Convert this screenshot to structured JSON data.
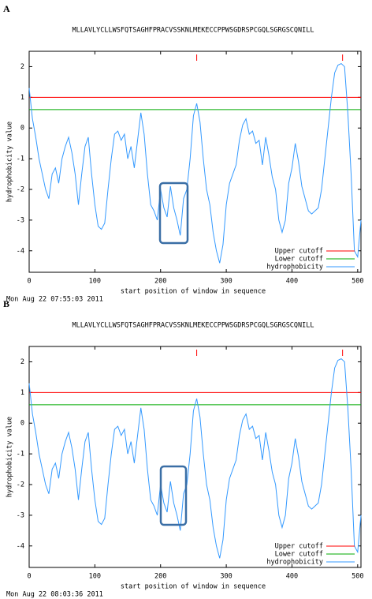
{
  "chart_data": [
    {
      "type": "line",
      "panel_label": "A",
      "title": "MLLAVLYCLLWSFQTSAGHFPRACVSSKNLMEKECCPPWSGDRSPCGQLSGRGSCQNILL",
      "xlabel": "start position of window in sequence",
      "ylabel": "hydrophobicity value",
      "footer": "Mon Aug 22 07:55:03 2011",
      "xlim": [
        0,
        505
      ],
      "ylim": [
        -4.7,
        2.5
      ],
      "xticks": [
        0,
        100,
        200,
        300,
        400,
        500
      ],
      "yticks": [
        2,
        1,
        0,
        -1,
        -2,
        -3,
        -4
      ],
      "peak_marks": {
        "color": "#ff0000",
        "x": [
          255,
          477
        ]
      },
      "cutoffs": [
        {
          "name": "Upper cutoff",
          "color": "#ff0000",
          "value": 1
        },
        {
          "name": "Lower cutoff",
          "color": "#00aa00",
          "value": 0.6
        }
      ],
      "x": [
        0,
        5,
        10,
        15,
        20,
        25,
        30,
        35,
        40,
        45,
        50,
        55,
        60,
        65,
        70,
        75,
        80,
        85,
        90,
        95,
        100,
        105,
        110,
        115,
        120,
        125,
        130,
        135,
        140,
        145,
        150,
        155,
        160,
        165,
        170,
        175,
        180,
        185,
        190,
        195,
        200,
        205,
        210,
        215,
        220,
        225,
        230,
        235,
        240,
        245,
        250,
        255,
        260,
        265,
        270,
        275,
        280,
        285,
        290,
        295,
        300,
        305,
        310,
        315,
        320,
        325,
        330,
        335,
        340,
        345,
        350,
        355,
        360,
        365,
        370,
        375,
        380,
        385,
        390,
        395,
        400,
        405,
        410,
        415,
        420,
        425,
        430,
        435,
        440,
        445,
        450,
        455,
        460,
        465,
        470,
        475,
        480,
        485,
        490,
        495,
        500,
        505
      ],
      "series": [
        {
          "name": "hydrophobicity",
          "color": "#3399ff",
          "values": [
            1.3,
            0.3,
            -0.3,
            -1.0,
            -1.5,
            -2.0,
            -2.3,
            -1.5,
            -1.3,
            -1.8,
            -1.0,
            -0.6,
            -0.3,
            -0.8,
            -1.5,
            -2.5,
            -1.5,
            -0.6,
            -0.3,
            -1.5,
            -2.5,
            -3.2,
            -3.3,
            -3.1,
            -2.0,
            -1.0,
            -0.2,
            -0.1,
            -0.4,
            -0.2,
            -1.0,
            -0.6,
            -1.3,
            -0.4,
            0.5,
            -0.2,
            -1.5,
            -2.5,
            -2.7,
            -3.0,
            -2.0,
            -2.6,
            -2.9,
            -1.9,
            -2.6,
            -3.0,
            -3.5,
            -2.3,
            -2.0,
            -1.0,
            0.4,
            0.8,
            0.2,
            -1.0,
            -2.0,
            -2.5,
            -3.4,
            -4.0,
            -4.4,
            -3.8,
            -2.5,
            -1.8,
            -1.5,
            -1.2,
            -0.4,
            0.1,
            0.3,
            -0.2,
            -0.1,
            -0.5,
            -0.4,
            -1.2,
            -0.3,
            -0.9,
            -1.6,
            -2.0,
            -3.0,
            -3.4,
            -3.0,
            -1.8,
            -1.3,
            -0.5,
            -1.1,
            -1.9,
            -2.3,
            -2.7,
            -2.8,
            -2.7,
            -2.6,
            -2.0,
            -1.0,
            0.0,
            1.0,
            1.8,
            2.05,
            2.1,
            2.0,
            0.5,
            -1.5,
            -4.0,
            -4.2,
            -3.0
          ]
        }
      ]
    },
    {
      "type": "line",
      "panel_label": "B",
      "title": "MLLAVLYCLLWSFQTSAGHFPRACVSSKNLMEKECCPPWSGDRSPCGQLSGRGSCQNILL",
      "xlabel": "start position of window in sequence",
      "ylabel": "hydrophobicity value",
      "footer": "Mon Aug 22 08:03:36 2011",
      "xlim": [
        0,
        505
      ],
      "ylim": [
        -4.7,
        2.5
      ],
      "xticks": [
        0,
        100,
        200,
        300,
        400,
        500
      ],
      "yticks": [
        2,
        1,
        0,
        -1,
        -2,
        -3,
        -4
      ],
      "peak_marks": {
        "color": "#ff0000",
        "x": [
          255,
          477
        ]
      },
      "cutoffs": [
        {
          "name": "Upper cutoff",
          "color": "#ff0000",
          "value": 1
        },
        {
          "name": "Lower cutoff",
          "color": "#00aa00",
          "value": 0.6
        }
      ],
      "x": [
        0,
        5,
        10,
        15,
        20,
        25,
        30,
        35,
        40,
        45,
        50,
        55,
        60,
        65,
        70,
        75,
        80,
        85,
        90,
        95,
        100,
        105,
        110,
        115,
        120,
        125,
        130,
        135,
        140,
        145,
        150,
        155,
        160,
        165,
        170,
        175,
        180,
        185,
        190,
        195,
        200,
        205,
        210,
        215,
        220,
        225,
        230,
        235,
        240,
        245,
        250,
        255,
        260,
        265,
        270,
        275,
        280,
        285,
        290,
        295,
        300,
        305,
        310,
        315,
        320,
        325,
        330,
        335,
        340,
        345,
        350,
        355,
        360,
        365,
        370,
        375,
        380,
        385,
        390,
        395,
        400,
        405,
        410,
        415,
        420,
        425,
        430,
        435,
        440,
        445,
        450,
        455,
        460,
        465,
        470,
        475,
        480,
        485,
        490,
        495,
        500,
        505
      ],
      "series": [
        {
          "name": "hydrophobicity",
          "color": "#3399ff",
          "values": [
            1.3,
            0.3,
            -0.3,
            -1.0,
            -1.5,
            -2.0,
            -2.3,
            -1.5,
            -1.3,
            -1.8,
            -1.0,
            -0.6,
            -0.3,
            -0.8,
            -1.5,
            -2.5,
            -1.5,
            -0.6,
            -0.3,
            -1.5,
            -2.5,
            -3.2,
            -3.3,
            -3.1,
            -2.0,
            -1.0,
            -0.2,
            -0.1,
            -0.4,
            -0.2,
            -1.0,
            -0.6,
            -1.3,
            -0.4,
            0.5,
            -0.2,
            -1.5,
            -2.5,
            -2.7,
            -3.0,
            -2.0,
            -2.6,
            -2.9,
            -1.9,
            -2.6,
            -3.0,
            -3.5,
            -2.3,
            -2.0,
            -1.0,
            0.4,
            0.8,
            0.2,
            -1.0,
            -2.0,
            -2.5,
            -3.4,
            -4.0,
            -4.4,
            -3.8,
            -2.5,
            -1.8,
            -1.5,
            -1.2,
            -0.4,
            0.1,
            0.3,
            -0.2,
            -0.1,
            -0.5,
            -0.4,
            -1.2,
            -0.3,
            -0.9,
            -1.6,
            -2.0,
            -3.0,
            -3.4,
            -3.0,
            -1.8,
            -1.3,
            -0.5,
            -1.1,
            -1.9,
            -2.3,
            -2.7,
            -2.8,
            -2.7,
            -2.6,
            -2.0,
            -1.0,
            0.0,
            1.0,
            1.8,
            2.05,
            2.1,
            2.0,
            0.5,
            -1.5,
            -4.0,
            -4.2,
            -3.0
          ]
        }
      ]
    }
  ]
}
